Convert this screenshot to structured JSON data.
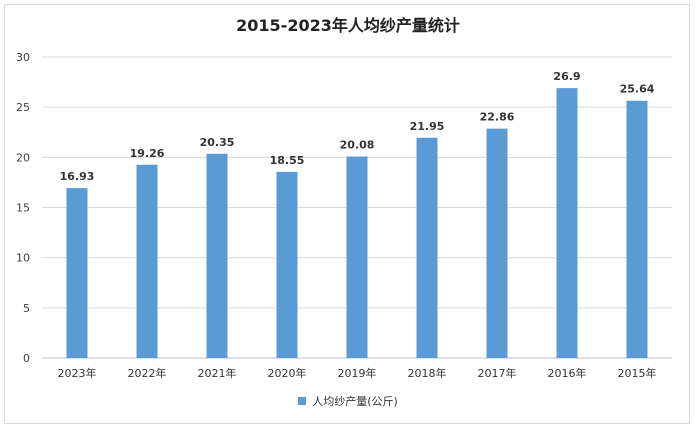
{
  "chart_data": {
    "type": "bar",
    "title": "2015-2023年人均纱产量统计",
    "categories": [
      "2023年",
      "2022年",
      "2021年",
      "2020年",
      "2019年",
      "2018年",
      "2017年",
      "2016年",
      "2015年"
    ],
    "series": [
      {
        "name": "人均纱产量(公斤)",
        "values": [
          16.93,
          19.26,
          20.35,
          18.55,
          20.08,
          21.95,
          22.86,
          26.9,
          25.64
        ],
        "labels": [
          "16.93",
          "19.26",
          "20.35",
          "18.55",
          "20.08",
          "21.95",
          "22.86",
          "26.9",
          "25.64"
        ],
        "color": "#5b9bd5"
      }
    ],
    "ylim": [
      0,
      30
    ],
    "yticks": [
      0,
      5,
      10,
      15,
      20,
      25,
      30
    ],
    "grid": true,
    "legend_position": "bottom"
  },
  "colors": {
    "bar": "#5b9bd5",
    "grid": "#d9d9d9",
    "axis": "#bfbfbf"
  }
}
